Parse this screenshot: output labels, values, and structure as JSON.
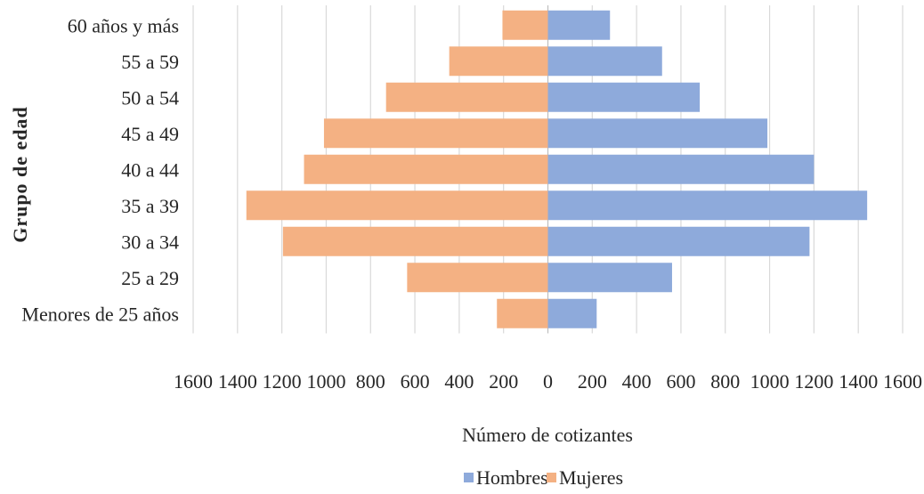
{
  "chart_data": {
    "type": "bar",
    "orientation": "horizontal",
    "layout": "population-pyramid",
    "title": "",
    "xlabel": "Número de cotizantes",
    "ylabel": "Grupo de edad",
    "categories": [
      "60 años y más",
      "55 a 59",
      "50 a 54",
      "45 a 49",
      "40 a 44",
      "35 a 39",
      "30 a 34",
      "25 a 29",
      "Menores de 25 años"
    ],
    "series": [
      {
        "name": "Hombres",
        "color": "#8eaadb",
        "side": "right",
        "values": [
          280,
          515,
          685,
          990,
          1200,
          1440,
          1180,
          560,
          220
        ]
      },
      {
        "name": "Mujeres",
        "color": "#f4b183",
        "side": "left",
        "values": [
          205,
          445,
          730,
          1010,
          1100,
          1360,
          1195,
          635,
          230
        ]
      }
    ],
    "xlim": [
      -1600,
      1600
    ],
    "xticks": [
      -1600,
      -1400,
      -1200,
      -1000,
      -800,
      -600,
      -400,
      -200,
      0,
      200,
      400,
      600,
      800,
      1000,
      1200,
      1400,
      1600
    ],
    "xtick_labels": [
      "1600",
      "1400",
      "1200",
      "1000",
      "800",
      "600",
      "400",
      "200",
      "0",
      "200",
      "400",
      "600",
      "800",
      "1000",
      "1200",
      "1400",
      "1600"
    ],
    "grid": "vertical",
    "legend": {
      "position": "bottom",
      "entries": [
        "Hombres",
        "Mujeres"
      ]
    }
  }
}
